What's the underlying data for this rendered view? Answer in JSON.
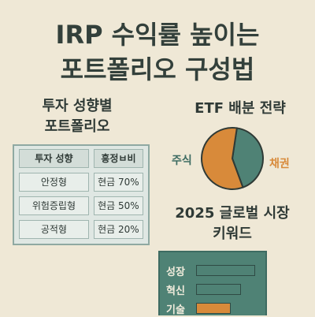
{
  "title": {
    "line1": "IRP 수익률 높이는",
    "line2": "포트폴리오 구성법"
  },
  "left_section": {
    "title_line1": "투자 성향별",
    "title_line2": "포트폴리오",
    "table": {
      "headers": [
        "투자 성향",
        "흥정ㅂ비"
      ],
      "rows": [
        [
          "안정형",
          "현금 70%"
        ],
        [
          "위험증립형",
          "현금 50%"
        ],
        [
          "공적형",
          "현금 20%"
        ]
      ]
    }
  },
  "etf_section": {
    "title": "ETF 배분 전략",
    "slices": [
      {
        "label": "주식",
        "value": 0.42,
        "color": "#4f8275"
      },
      {
        "label": "채권",
        "value": 0.58,
        "color": "#d88a3a"
      }
    ]
  },
  "keyword_section": {
    "title_line1": "2025 글로벌 시장",
    "title_line2": "키워드",
    "items": [
      {
        "label": "성장",
        "level": 0.85,
        "color": "#4f8275"
      },
      {
        "label": "혁신",
        "level": 0.65,
        "color": "#4f8275"
      },
      {
        "label": "기술",
        "level": 0.5,
        "color": "#d88a3a"
      }
    ]
  }
}
